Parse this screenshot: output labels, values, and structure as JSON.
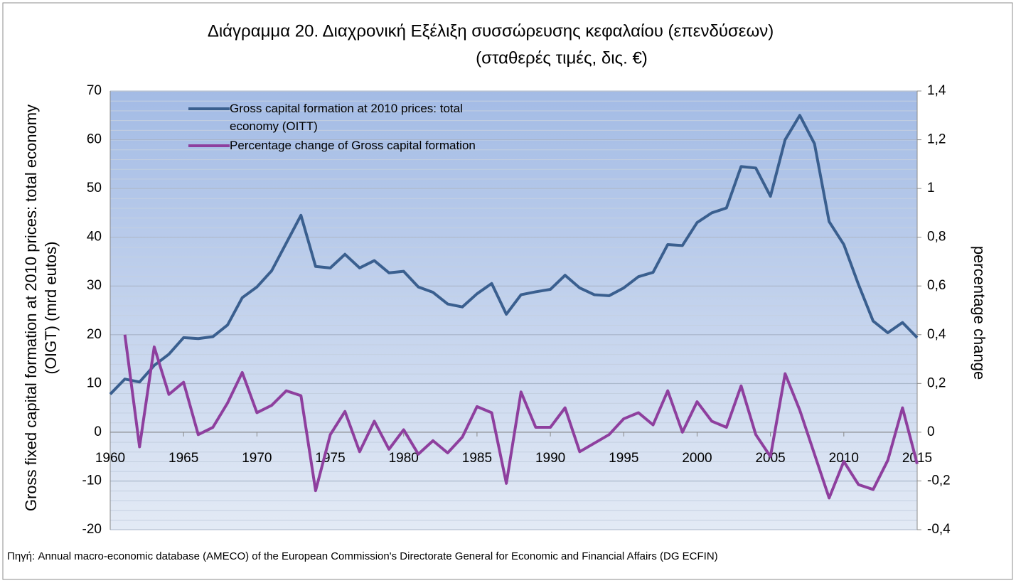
{
  "chart_data": {
    "type": "line",
    "title": "Διάγραμμα  20. Διαχρονική Εξέλιξη συσσώρευσης κεφαλαίου (επενδύσεων)",
    "subtitle": "(σταθερές τιμές, δις. €)",
    "y_label": "Gross fixed capital formation at 2010 prices: total economy (OIGT) (mrd eutos)",
    "y2_label": "percentage change",
    "source": "Πηγή: Annual macro-economic database (AMECO) of the European Commission's Directorate General for Economic and Financial Affairs (DG ECFIN)",
    "x": [
      1960,
      1961,
      1962,
      1963,
      1964,
      1965,
      1966,
      1967,
      1968,
      1969,
      1970,
      1971,
      1972,
      1973,
      1974,
      1975,
      1976,
      1977,
      1978,
      1979,
      1980,
      1981,
      1982,
      1983,
      1984,
      1985,
      1986,
      1987,
      1988,
      1989,
      1990,
      1991,
      1992,
      1993,
      1994,
      1995,
      1996,
      1997,
      1998,
      1999,
      2000,
      2001,
      2002,
      2003,
      2004,
      2005,
      2006,
      2007,
      2008,
      2009,
      2010,
      2011,
      2012,
      2013,
      2014,
      2015
    ],
    "xlim": [
      1960,
      2015
    ],
    "xticks": [
      1960,
      1965,
      1970,
      1975,
      1980,
      1985,
      1990,
      1995,
      2000,
      2005,
      2010,
      2015
    ],
    "ylim": [
      -20,
      70
    ],
    "yticks": [
      -20,
      -10,
      0,
      10,
      20,
      30,
      40,
      50,
      60,
      70
    ],
    "y2lim": [
      -0.4,
      1.4
    ],
    "y2ticks": [
      {
        "value": -0.4,
        "label": "-0,4"
      },
      {
        "value": -0.2,
        "label": "-0,2"
      },
      0,
      {
        "value": 0.2,
        "label": "0,2"
      },
      {
        "value": 0.4,
        "label": "0,4"
      },
      {
        "value": 0.6,
        "label": "0,6"
      },
      {
        "value": 0.8,
        "label": "0,8"
      },
      1,
      {
        "value": 1.2,
        "label": "1,2"
      },
      {
        "value": 1.4,
        "label": "1,4"
      }
    ],
    "grid": true,
    "legend": "top-left",
    "series": [
      {
        "name": "Gross capital formation at 2010 prices: total economy (OITT)",
        "color": "#3a5f8f",
        "values": [
          7.8,
          10.9,
          10.3,
          13.7,
          16.0,
          19.4,
          19.2,
          19.6,
          22.0,
          27.6,
          29.8,
          33.1,
          38.8,
          44.5,
          34.0,
          33.7,
          36.5,
          33.7,
          35.2,
          32.7,
          33.0,
          29.8,
          28.7,
          26.3,
          25.7,
          28.4,
          30.5,
          24.2,
          28.2,
          28.8,
          29.3,
          32.2,
          29.6,
          28.2,
          28.0,
          29.6,
          31.9,
          32.8,
          38.5,
          38.3,
          43.0,
          45.0,
          46.0,
          54.5,
          54.2,
          48.4,
          60.0,
          65.0,
          59.2,
          43.2,
          38.5,
          30.3,
          22.8,
          20.4,
          22.5,
          19.4
        ]
      },
      {
        "name": "Percentage change of Gross capital formation",
        "color": "#8e3f9e",
        "axis": "y2",
        "values": [
          null,
          0.4,
          -0.06,
          0.35,
          0.155,
          0.205,
          -0.01,
          0.02,
          0.12,
          0.245,
          0.08,
          0.11,
          0.17,
          0.15,
          -0.24,
          -0.01,
          0.085,
          -0.08,
          0.045,
          -0.07,
          0.01,
          -0.09,
          -0.035,
          -0.085,
          -0.02,
          0.105,
          0.08,
          -0.21,
          0.165,
          0.02,
          0.02,
          0.1,
          -0.08,
          -0.045,
          -0.01,
          0.055,
          0.08,
          0.03,
          0.17,
          0.0,
          0.125,
          0.045,
          0.02,
          0.19,
          -0.01,
          -0.1,
          0.24,
          0.09,
          -0.09,
          -0.27,
          -0.12,
          -0.215,
          -0.235,
          -0.115,
          0.1,
          -0.13
        ]
      }
    ]
  }
}
